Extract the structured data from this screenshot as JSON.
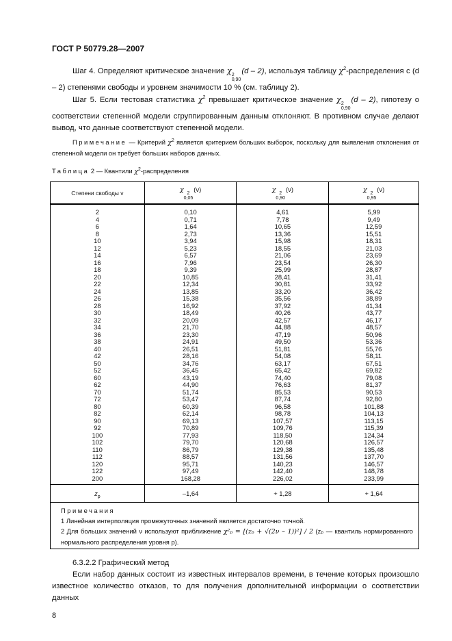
{
  "header": {
    "doc_id": "ГОСТ Р 50779.28—2007"
  },
  "step4": {
    "a": "Шаг 4. Определяют критическое значение ",
    "chi": "χ",
    "sup": "2",
    "sub": "0,90",
    "arg": "(d – 2)",
    "b": ", используя таблицу ",
    "chi2": "χ",
    "sup2": "2",
    "c": "-распределения с (d – 2) степенями свободы и уровнем значимости 10 % (см. таблицу 2)."
  },
  "step5": {
    "a": "Шаг 5. Если тестовая статистика ",
    "chi": "χ",
    "sup": "2",
    "b": " превышает критическое значение ",
    "chi2": "χ",
    "sup2": "2",
    "sub2": "0,90",
    "arg": "(d – 2)",
    "c": ", гипотезу о соответствии степенной модели сгруппированным данным отклоняют. В противном случае делают вывод, что данные соответствуют степенной модели."
  },
  "note": {
    "label": "Примечание",
    "a": " — Критерий ",
    "chi": "χ",
    "sup": "2",
    "b": " является критерием больших выборок, поскольку для выявления отклонения от степенной модели он требует больших наборов данных."
  },
  "table": {
    "caption_label": "Таблица",
    "caption_rest": " 2 — Квантили ",
    "caption_chi": "χ",
    "caption_sup": "2",
    "caption_end": "-распределения",
    "headers": [
      {
        "text": "Степени свободы ν"
      },
      {
        "chi": "χ",
        "sup": "2",
        "sub": "0,05",
        "arg": "(ν)"
      },
      {
        "chi": "χ",
        "sup": "2",
        "sub": "0,90",
        "arg": "(ν)"
      },
      {
        "chi": "χ",
        "sup": "2",
        "sub": "0,95",
        "arg": "(ν)"
      }
    ],
    "rows": [
      [
        "2",
        "0,10",
        "4,61",
        "5,99"
      ],
      [
        "4",
        "0,71",
        "7,78",
        "9,49"
      ],
      [
        "6",
        "1,64",
        "10,65",
        "12,59"
      ],
      [
        "8",
        "2,73",
        "13,36",
        "15,51"
      ],
      [
        "10",
        "3,94",
        "15,98",
        "18,31"
      ],
      [
        "12",
        "5,23",
        "18,55",
        "21,03"
      ],
      [
        "14",
        "6,57",
        "21,06",
        "23,69"
      ],
      [
        "16",
        "7,96",
        "23,54",
        "26,30"
      ],
      [
        "18",
        "9,39",
        "25,99",
        "28,87"
      ],
      [
        "20",
        "10,85",
        "28,41",
        "31,41"
      ],
      [
        "22",
        "12,34",
        "30,81",
        "33,92"
      ],
      [
        "24",
        "13,85",
        "33,20",
        "36,42"
      ],
      [
        "26",
        "15,38",
        "35,56",
        "38,89"
      ],
      [
        "28",
        "16,92",
        "37,92",
        "41,34"
      ],
      [
        "30",
        "18,49",
        "40,26",
        "43,77"
      ],
      [
        "32",
        "20,09",
        "42,57",
        "46,17"
      ],
      [
        "34",
        "21,70",
        "44,88",
        "48,57"
      ],
      [
        "36",
        "23,30",
        "47,19",
        "50,96"
      ],
      [
        "38",
        "24,91",
        "49,50",
        "53,36"
      ],
      [
        "40",
        "26,51",
        "51,81",
        "55,76"
      ],
      [
        "42",
        "28,16",
        "54,08",
        "58,11"
      ],
      [
        "50",
        "34,76",
        "63,17",
        "67,51"
      ],
      [
        "52",
        "36,45",
        "65,42",
        "69,82"
      ],
      [
        "60",
        "43,19",
        "74,40",
        "79,08"
      ],
      [
        "62",
        "44,90",
        "76,63",
        "81,37"
      ],
      [
        "70",
        "51,74",
        "85,53",
        "90,53"
      ],
      [
        "72",
        "53,47",
        "87,74",
        "92,80"
      ],
      [
        "80",
        "60,39",
        "96,58",
        "101,88"
      ],
      [
        "82",
        "62,14",
        "98,78",
        "104,13"
      ],
      [
        "90",
        "69,13",
        "107,57",
        "113,15"
      ],
      [
        "92",
        "70,89",
        "109,76",
        "115,39"
      ],
      [
        "100",
        "77,93",
        "118,50",
        "124,34"
      ],
      [
        "102",
        "79,70",
        "120,68",
        "126,57"
      ],
      [
        "110",
        "86,79",
        "129,38",
        "135,48"
      ],
      [
        "112",
        "88,57",
        "131,56",
        "137,70"
      ],
      [
        "120",
        "95,71",
        "140,23",
        "146,57"
      ],
      [
        "122",
        "97,49",
        "142,40",
        "148,78"
      ],
      [
        "200",
        "168,28",
        "226,02",
        "233,99"
      ]
    ],
    "zp_row": {
      "label": "z",
      "label_sub": "p",
      "values": [
        "–1,64",
        "+ 1,28",
        "+ 1,64"
      ]
    },
    "notes": {
      "title": "Примечания",
      "n1": "1 Линейная интерполяция промежуточных значений является достаточно точной.",
      "n2a": "2 Для больших значений ν используют приближение ",
      "formula": "χ²ₚ = [(zₚ + √(2ν – 1))²] / 2",
      "n2b": " (zₚ — квантиль нормированного нормального распределения уровня p)."
    }
  },
  "section": {
    "title": "6.3.2.2 Графический метод",
    "text": "Если набор данных состоит из известных интервалов времени, в течение которых произошло известное количество отказов, то для получения дополнительной информации о соответствии данных"
  },
  "page_number": "8"
}
